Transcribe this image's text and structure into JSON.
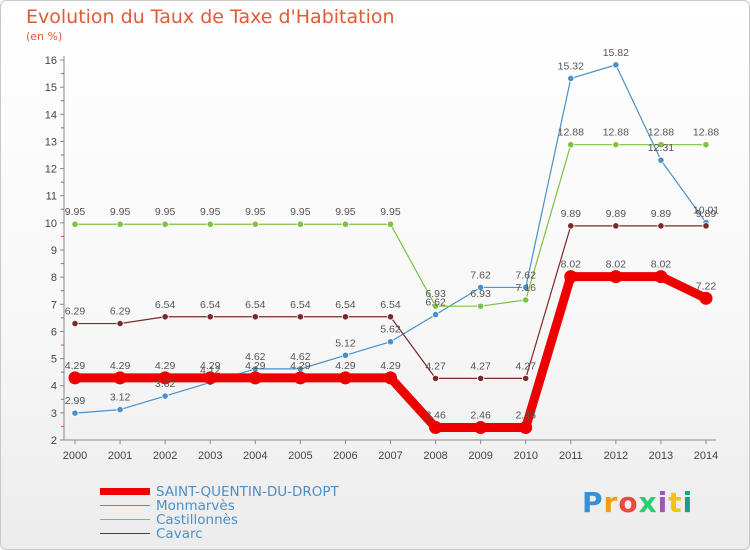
{
  "chart_data": {
    "type": "line",
    "title": "Evolution du Taux de Taxe d'Habitation",
    "subtitle": "(en %)",
    "x": [
      "2000",
      "2001",
      "2002",
      "2003",
      "2004",
      "2005",
      "2006",
      "2007",
      "2008",
      "2009",
      "2010",
      "2011",
      "2012",
      "2013",
      "2014"
    ],
    "ylim": [
      2,
      16
    ],
    "yticks": [
      2,
      3,
      4,
      5,
      6,
      7,
      8,
      9,
      10,
      11,
      12,
      13,
      14,
      15,
      16
    ],
    "grid": false,
    "legend_position": "bottom-left",
    "series": [
      {
        "name": "Monmarvès",
        "color": "#4b90c8",
        "values": [
          2.99,
          3.12,
          3.62,
          4.12,
          4.62,
          4.62,
          5.12,
          5.62,
          6.62,
          7.62,
          7.62,
          15.32,
          15.82,
          12.31,
          10.01
        ],
        "labels": [
          "2.99",
          "3.12",
          "3.62",
          "4.12",
          "4.62",
          "4.62",
          "5.12",
          "5.62",
          "6.62",
          "7.62",
          "7.62",
          "15.32",
          "15.82",
          "12.31",
          "10.01"
        ]
      },
      {
        "name": "Castillonnès",
        "color": "#7dc242",
        "values": [
          9.95,
          9.95,
          9.95,
          9.95,
          9.95,
          9.95,
          9.95,
          9.95,
          6.93,
          6.93,
          7.16,
          12.88,
          12.88,
          12.88,
          12.88
        ],
        "labels": [
          "9.95",
          "9.95",
          "9.95",
          "9.95",
          "9.95",
          "9.95",
          "9.95",
          "9.95",
          "6.93",
          "6.93",
          "7.16",
          "12.88",
          "12.88",
          "12.88",
          "12.88"
        ]
      },
      {
        "name": "Cavarc",
        "color": "#7a2a2a",
        "values": [
          6.29,
          6.29,
          6.54,
          6.54,
          6.54,
          6.54,
          6.54,
          6.54,
          4.27,
          4.27,
          4.27,
          9.89,
          9.89,
          9.89,
          9.89
        ],
        "labels": [
          "6.29",
          "6.29",
          "6.54",
          "6.54",
          "6.54",
          "6.54",
          "6.54",
          "6.54",
          "4.27",
          "4.27",
          "4.27",
          "9.89",
          "9.89",
          "9.89",
          "9.89"
        ]
      },
      {
        "name": "SAINT-QUENTIN-DU-DROPT",
        "color": "#ee0000",
        "values": [
          4.29,
          4.29,
          4.29,
          4.29,
          4.29,
          4.29,
          4.29,
          4.29,
          2.46,
          2.46,
          2.46,
          8.02,
          8.02,
          8.02,
          7.22
        ],
        "labels": [
          "4.29",
          "4.29",
          "4.29",
          "4.29",
          "4.29",
          "4.29",
          "4.29",
          "4.29",
          "2.46",
          "2.46",
          "2.46",
          "8.02",
          "8.02",
          "8.02",
          "7.22"
        ]
      }
    ]
  },
  "legend": [
    {
      "label": "SAINT-QUENTIN-DU-DROPT",
      "color": "#ee0000",
      "thick": true
    },
    {
      "label": "Monmarvès",
      "color": "#4b90c8",
      "thick": false
    },
    {
      "label": "Castillonnès",
      "color": "#7dc242",
      "thick": false
    },
    {
      "label": "Cavarc",
      "color": "#7a2a2a",
      "thick": false
    }
  ],
  "brand": {
    "text": "Proxiti"
  }
}
